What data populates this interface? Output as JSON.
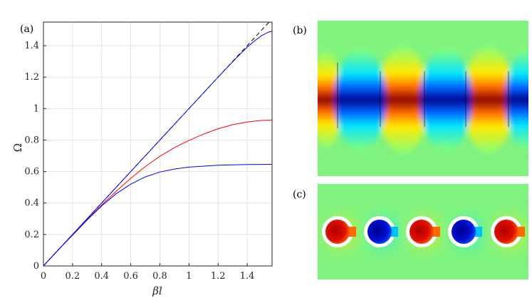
{
  "panels": {
    "a": {
      "label": "(a)"
    },
    "b": {
      "label": "(b)"
    },
    "c": {
      "label": "(c)"
    }
  },
  "chart_data": {
    "type": "line",
    "xlabel": "βl",
    "ylabel": "Ω",
    "xlim": [
      0,
      1.5708
    ],
    "ylim": [
      0,
      1.55
    ],
    "xticks": [
      "0",
      "0.2",
      "0.4",
      "0.6",
      "0.8",
      "1",
      "1.2",
      "1.4"
    ],
    "yticks": [
      "0",
      "0.2",
      "0.4",
      "0.6",
      "0.8",
      "1",
      "1.2",
      "1.4"
    ],
    "grid": true,
    "series": [
      {
        "style": "dashed",
        "color": "#000000",
        "x": [
          0,
          1.5708
        ],
        "y": [
          0,
          1.5708
        ]
      },
      {
        "color": "#0000ff",
        "x": [
          0,
          1.2,
          1.3,
          1.35,
          1.4,
          1.45,
          1.5,
          1.55,
          1.5708
        ],
        "y": [
          0,
          1.2,
          1.298,
          1.345,
          1.39,
          1.43,
          1.465,
          1.488,
          1.492
        ]
      },
      {
        "color": "#ff0000",
        "x": [
          0,
          0.1,
          0.2,
          0.3,
          0.4,
          0.5,
          0.6,
          0.7,
          0.8,
          0.9,
          1.0,
          1.1,
          1.2,
          1.3,
          1.4,
          1.5,
          1.5708
        ],
        "y": [
          0,
          0.1,
          0.197,
          0.294,
          0.387,
          0.475,
          0.557,
          0.632,
          0.697,
          0.752,
          0.798,
          0.838,
          0.872,
          0.898,
          0.915,
          0.925,
          0.928
        ]
      },
      {
        "color": "#0000ff",
        "x": [
          0,
          0.1,
          0.2,
          0.3,
          0.4,
          0.5,
          0.6,
          0.7,
          0.8,
          0.9,
          1.0,
          1.2,
          1.4,
          1.5708
        ],
        "y": [
          0,
          0.1,
          0.196,
          0.292,
          0.381,
          0.459,
          0.52,
          0.566,
          0.597,
          0.616,
          0.628,
          0.64,
          0.645,
          0.646
        ]
      }
    ]
  },
  "colors": {
    "field_red": "#8b0000",
    "field_blue": "#00008b",
    "field_background": "#7ff27f"
  }
}
